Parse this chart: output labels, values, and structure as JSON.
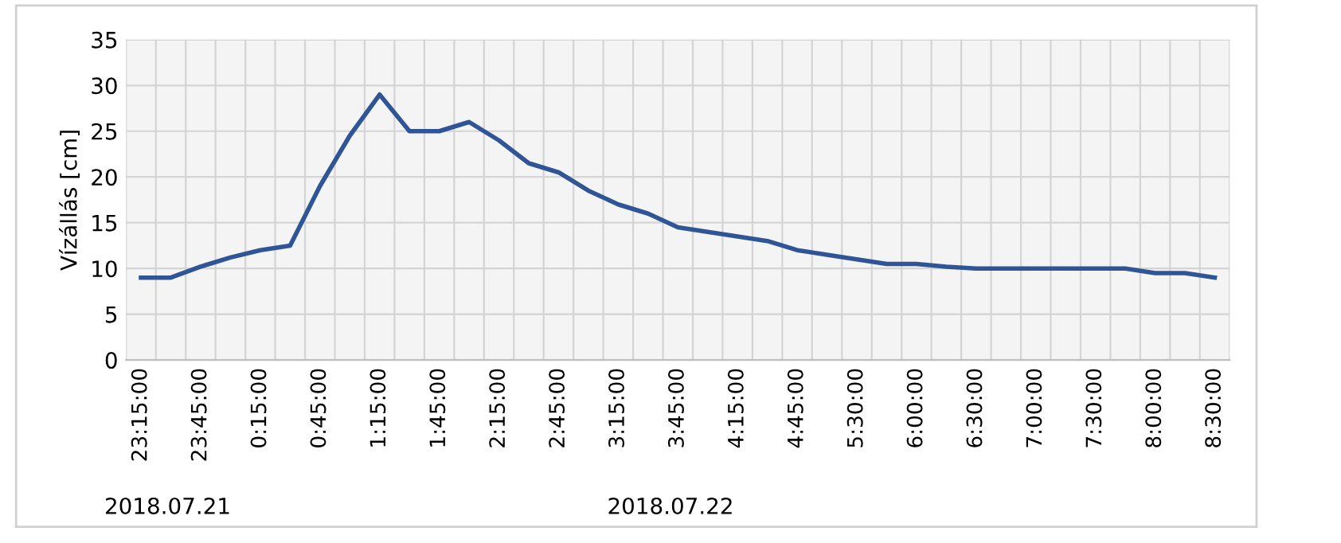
{
  "chart_data": {
    "type": "line",
    "ylabel": "Vízállás [cm]",
    "categories": [
      "23:15:00",
      null,
      "23:45:00",
      null,
      "0:15:00",
      null,
      "0:45:00",
      null,
      "1:15:00",
      null,
      "1:45:00",
      null,
      "2:15:00",
      null,
      "2:45:00",
      null,
      "3:15:00",
      null,
      "3:45:00",
      null,
      "4:15:00",
      null,
      "4:45:00",
      null,
      "5:30:00",
      null,
      "6:00:00",
      null,
      "6:30:00",
      null,
      "7:00:00",
      null,
      "7:30:00",
      null,
      "8:00:00",
      null,
      "8:30:00"
    ],
    "series": [
      {
        "color": "#2f5597",
        "values": [
          9,
          9,
          10.2,
          11.2,
          12,
          12.5,
          19,
          24.5,
          29,
          25,
          25,
          26,
          24,
          21.5,
          20.5,
          18.5,
          17,
          16,
          14.5,
          14,
          13.5,
          13,
          12,
          11.5,
          11,
          10.5,
          10.5,
          10.2,
          10,
          10,
          10,
          10,
          10,
          10,
          9.5,
          9.5,
          9
        ]
      }
    ],
    "ylim": [
      0,
      35
    ],
    "yticks": [
      0,
      5,
      10,
      15,
      20,
      25,
      30,
      35
    ],
    "grid": true,
    "marker": "none",
    "line_style": "solid",
    "annotations": [
      "2018.07.21",
      "2018.07.22"
    ]
  }
}
